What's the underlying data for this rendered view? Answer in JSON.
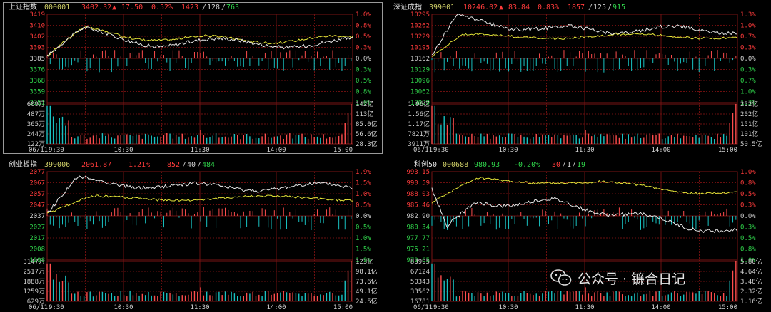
{
  "colors": {
    "up": "#ff4d4d",
    "down": "#19c2c2",
    "white": "#e8e8e8",
    "yellow": "#e6e639",
    "axis": "#cfcfcf",
    "grid": "#6b0f0f",
    "green": "#2fd24a",
    "red": "#ff3b3b",
    "title": "#e0e0e0",
    "code": "#cccc66"
  },
  "watermark": {
    "text": "公众号 · 镰合日记",
    "icon": "wechat-icon"
  },
  "panels": [
    {
      "id": "sh",
      "name": "上证指数",
      "code": "000001",
      "price": "3402.32",
      "arrow": "▲",
      "change": "17.50",
      "pct": "0.52%",
      "breadth": {
        "up": "1423",
        "flat": "128",
        "down": "763"
      },
      "price_labels": [
        "3419",
        "3410",
        "3402",
        "3393",
        "3385",
        "3376",
        "3368",
        "3359",
        "3351"
      ],
      "pct_labels": [
        "1.0%",
        "0.8%",
        "0.5%",
        "0.3%",
        "0.0%",
        "0.3%",
        "0.5%",
        "0.8%",
        "1.0%"
      ],
      "vol_labels": [
        "609万",
        "487万",
        "365万",
        "244万",
        "122万"
      ],
      "amt_labels": [
        "142亿",
        "113亿",
        "85.0亿",
        "56.6亿",
        "28.3亿"
      ],
      "date": "06/11",
      "times": [
        "9:30",
        "10:30",
        "11:30",
        "14:00",
        "15:00"
      ]
    },
    {
      "id": "sz",
      "name": "深证成指",
      "code": "399001",
      "price": "10246.02",
      "arrow": "▲",
      "change": "83.84",
      "pct": "0.83%",
      "breadth": {
        "up": "1857",
        "flat": "125",
        "down": "915"
      },
      "price_labels": [
        "10295",
        "10262",
        "10229",
        "10195",
        "10162",
        "10129",
        "10096",
        "10062",
        "10029"
      ],
      "pct_labels": [
        "1.3%",
        "1.0%",
        "0.7%",
        "0.3%",
        "0.0%",
        "0.3%",
        "0.7%",
        "1.0%",
        "1.3%"
      ],
      "vol_labels": [
        "1.96亿",
        "1.56亿",
        "1.17亿",
        "7821万",
        "3911万"
      ],
      "amt_labels": [
        "252亿",
        "202亿",
        "151亿",
        "101亿",
        "50.5亿"
      ],
      "date": "06/11",
      "times": [
        "9:30",
        "10:30",
        "11:30",
        "14:00",
        "15:00"
      ]
    },
    {
      "id": "cy",
      "name": "创业板指",
      "code": "399006",
      "price": "2061.87",
      "arrow": "",
      "change": "",
      "pct": "1.21%",
      "breadth": {
        "up": "852",
        "flat": "40",
        "down": "484"
      },
      "price_labels": [
        "2077",
        "2067",
        "2057",
        "2047",
        "2037",
        "2027",
        "2017",
        "2008",
        "1998"
      ],
      "pct_labels": [
        "1.9%",
        "1.5%",
        "1.0%",
        "0.5%",
        "0.0%",
        "0.5%",
        "1.0%",
        "1.5%",
        "1.9%"
      ],
      "vol_labels": [
        "3147万",
        "2517万",
        "1888万",
        "1259万",
        "629万"
      ],
      "amt_labels": [
        "123亿",
        "98.1亿",
        "73.6亿",
        "49.1亿",
        "24.5亿"
      ],
      "date": "06/11",
      "times": [
        "9:30",
        "10:30",
        "11:30",
        "14:00",
        "15:00"
      ]
    },
    {
      "id": "kc",
      "name": "科创50",
      "code": "000688",
      "price": "980.93",
      "arrow": "",
      "change": "-0.20%",
      "pct": "",
      "breadth": {
        "up": "30",
        "flat": "1",
        "down": "19"
      },
      "price_labels": [
        "993.15",
        "990.59",
        "988.03",
        "985.46",
        "982.90",
        "980.34",
        "977.77",
        "975.21",
        "972.65"
      ],
      "pct_labels": [
        "1.0%",
        "0.8%",
        "0.5%",
        "0.3%",
        "0.0%",
        "0.3%",
        "0.5%",
        "0.8%",
        "1.0%"
      ],
      "vol_labels": [
        "83905",
        "67124",
        "50343",
        "33562",
        "16781"
      ],
      "amt_labels": [
        "5.80亿",
        "4.64亿",
        "3.48亿",
        "2.32亿",
        "1.16亿"
      ],
      "date": "06/11",
      "times": [
        "9:30",
        "10:30",
        "11:30",
        "14:00",
        "15:00"
      ]
    }
  ]
}
